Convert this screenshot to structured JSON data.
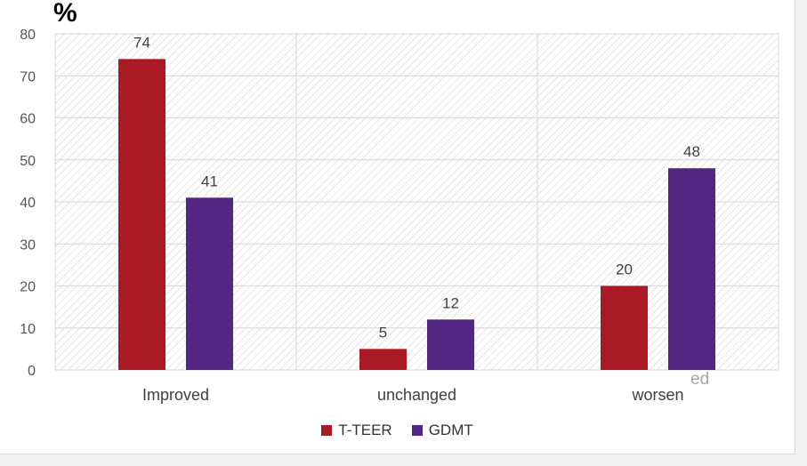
{
  "unit_label": "%",
  "stray_text": "ed",
  "colors": {
    "series_1": "#ab1a24",
    "series_2": "#522682",
    "hatch": "#cccccc",
    "grid": "#d6d6d6"
  },
  "chart_data": {
    "type": "bar",
    "title": "",
    "xlabel": "",
    "ylabel": "%",
    "categories": [
      "Improved",
      "unchanged",
      "worsen"
    ],
    "series": [
      {
        "name": "T-TEER",
        "values": [
          74,
          5,
          20
        ]
      },
      {
        "name": "GDMT",
        "values": [
          41,
          12,
          48
        ]
      }
    ],
    "ylim": [
      0,
      80
    ],
    "yticks": [
      0,
      10,
      20,
      30,
      40,
      50,
      60,
      70,
      80
    ],
    "grid": true,
    "legend_position": "bottom",
    "data_labels": true
  }
}
